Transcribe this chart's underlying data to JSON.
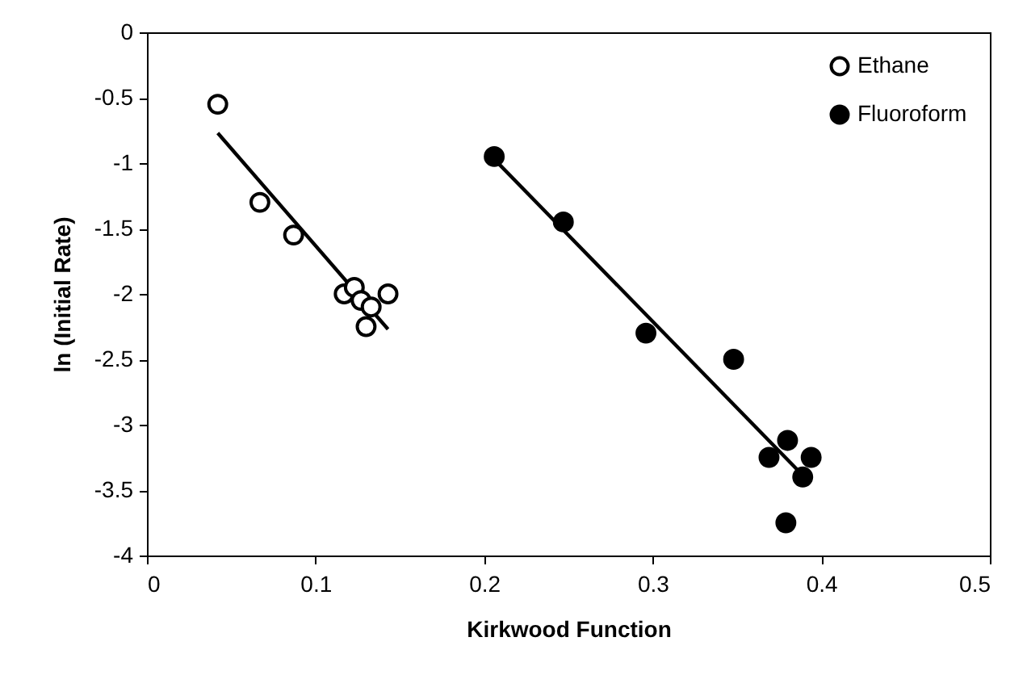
{
  "chart_data": {
    "type": "scatter",
    "xlabel": "Kirkwood Function",
    "ylabel": "ln (Initial Rate)",
    "xlim": [
      0,
      0.5
    ],
    "xticks": [
      0,
      0.1,
      0.2,
      0.3,
      0.4,
      0.5
    ],
    "ylim": [
      -4,
      0
    ],
    "yticks": [
      -4,
      -3.5,
      -3,
      -2.5,
      -2,
      -1.5,
      -1,
      -0.5,
      0
    ],
    "grid": false,
    "legend": "top right",
    "marker": "circle",
    "series": [
      {
        "name": "Ethane",
        "color": "#ffffff",
        "x": [
          0.042,
          0.067,
          0.087,
          0.117,
          0.123,
          0.127,
          0.13,
          0.133,
          0.143
        ],
        "values": [
          -0.55,
          -1.3,
          -1.55,
          -2.0,
          -1.95,
          -2.05,
          -2.25,
          -2.1,
          -2.0
        ]
      },
      {
        "name": "Fluoroform",
        "color": "#000000",
        "x": [
          0.206,
          0.247,
          0.296,
          0.348,
          0.369,
          0.38,
          0.379,
          0.389,
          0.394
        ],
        "values": [
          -0.95,
          -1.45,
          -2.3,
          -2.5,
          -3.25,
          -3.12,
          -3.75,
          -3.4,
          -3.25
        ]
      },
      {
        "type": "line",
        "color": "#000000",
        "marker": "none",
        "x": [
          0.042,
          0.143
        ],
        "values": [
          -0.77,
          -2.27
        ]
      },
      {
        "type": "line",
        "color": "#000000",
        "marker": "none",
        "x": [
          0.206,
          0.39
        ],
        "values": [
          -0.97,
          -3.4
        ]
      }
    ]
  }
}
